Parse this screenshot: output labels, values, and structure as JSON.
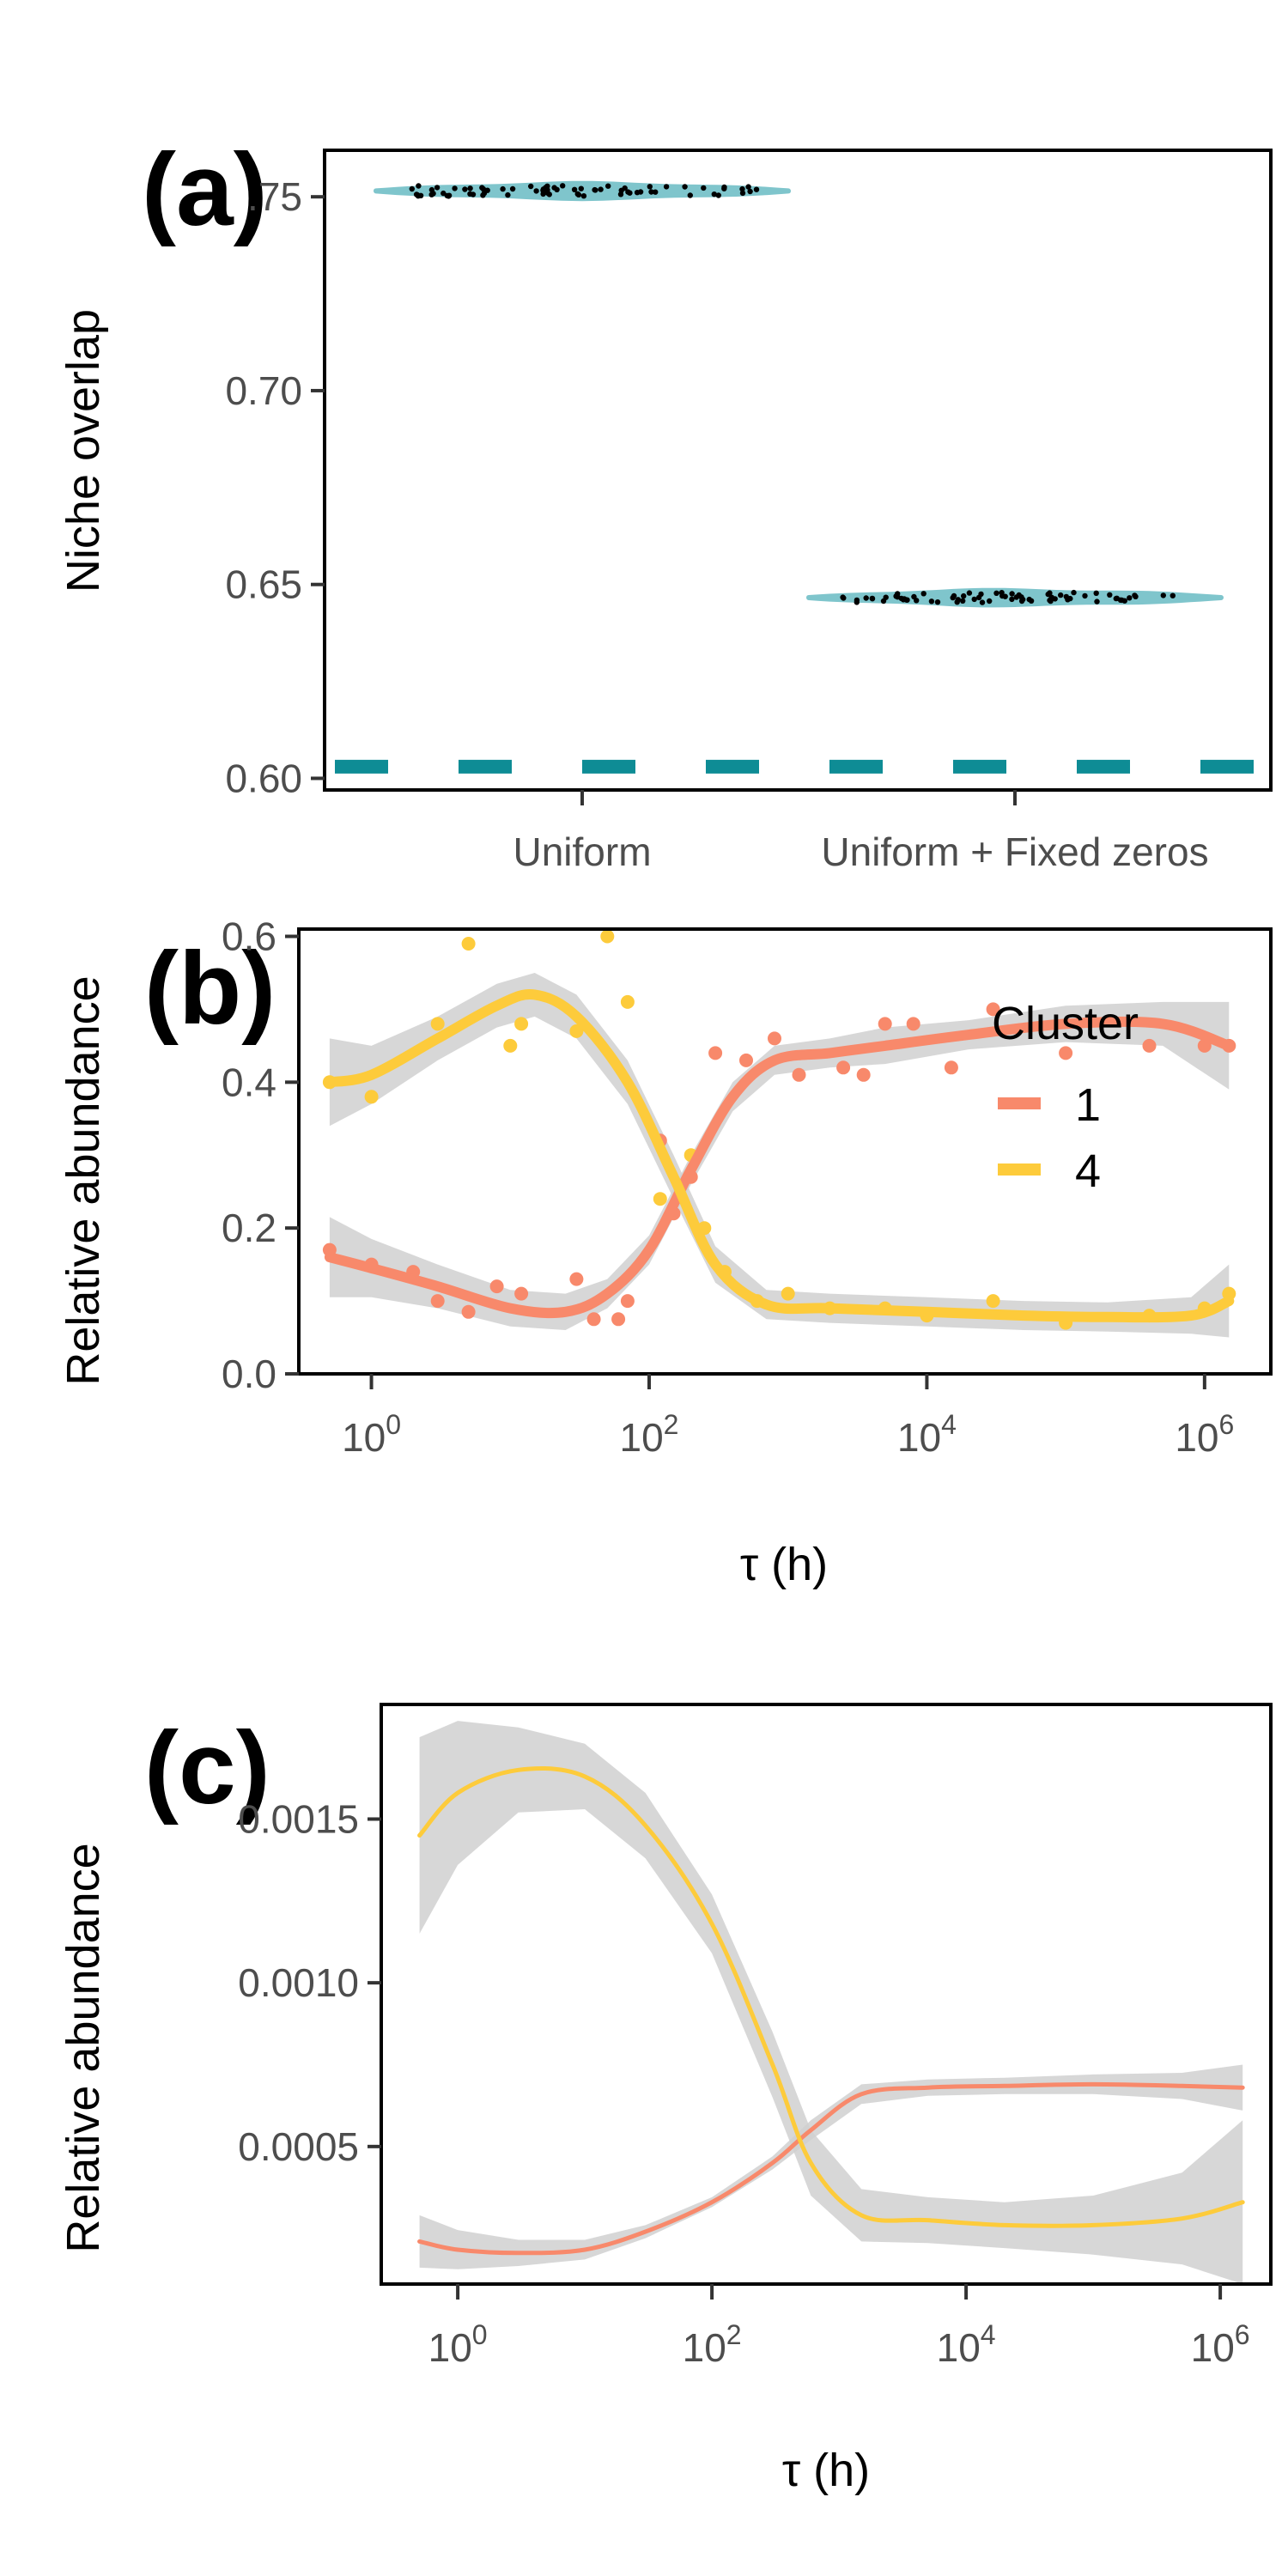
{
  "colors": {
    "cluster_1": "#F8896B",
    "cluster_4": "#FDCB3B",
    "violin": "#7FC5CC",
    "reference_line": "#0E8C95",
    "ribbon": "#D0D0D0",
    "points_a": "#000000"
  },
  "chart_data": [
    {
      "panel": "(a)",
      "type": "scatter",
      "subtype": "violin-jitter",
      "categories": [
        "Uniform",
        "Uniform + Fixed zeros"
      ],
      "ylabel": "Niche overlap",
      "xlabel": "",
      "ylim": [
        0.597,
        0.762
      ],
      "y_ticks": [
        0.6,
        0.65,
        0.7,
        0.75
      ],
      "y_tick_labels": [
        "0.60",
        "0.65",
        "0.70",
        ".75"
      ],
      "grid": false,
      "reference_line": {
        "y": 0.603,
        "style": "dashed"
      },
      "series": [
        {
          "category": "Uniform",
          "median": 0.7515,
          "min": 0.7505,
          "max": 0.7526
        },
        {
          "category": "Uniform + Fixed zeros",
          "median": 0.6466,
          "min": 0.6457,
          "max": 0.6477
        }
      ]
    },
    {
      "panel": "(b)",
      "type": "scatter",
      "subtype": "points-with-smooth",
      "xlabel": "τ (h)",
      "ylabel": "Relative abundance",
      "x_scale": "log10",
      "xlim": [
        0.3,
        3000000
      ],
      "ylim": [
        0,
        0.61
      ],
      "x_ticks": [
        1,
        100,
        10000,
        1000000
      ],
      "x_tick_labels": [
        "10",
        "10",
        "10",
        "10"
      ],
      "x_tick_exponents": [
        "0",
        "2",
        "4",
        "6"
      ],
      "y_ticks": [
        0,
        0.2,
        0.4,
        0.6
      ],
      "y_tick_labels": [
        "0.0",
        "0.2",
        "0.4",
        "0.6"
      ],
      "grid": false,
      "legend": {
        "title": "Cluster",
        "position": "top-right",
        "entries": [
          "1",
          "4"
        ]
      },
      "series": [
        {
          "name": "1",
          "points": [
            [
              0.5,
              0.17
            ],
            [
              1,
              0.15
            ],
            [
              2,
              0.14
            ],
            [
              3,
              0.1
            ],
            [
              5,
              0.085
            ],
            [
              8,
              0.12
            ],
            [
              12,
              0.11
            ],
            [
              30,
              0.13
            ],
            [
              40,
              0.075
            ],
            [
              60,
              0.075
            ],
            [
              70,
              0.1
            ],
            [
              120,
              0.32
            ],
            [
              150,
              0.22
            ],
            [
              200,
              0.27
            ],
            [
              300,
              0.44
            ],
            [
              500,
              0.43
            ],
            [
              800,
              0.46
            ],
            [
              1200,
              0.41
            ],
            [
              2500,
              0.42
            ],
            [
              3500,
              0.41
            ],
            [
              5000,
              0.48
            ],
            [
              8000,
              0.48
            ],
            [
              15000,
              0.42
            ],
            [
              30000,
              0.5
            ],
            [
              100000,
              0.44
            ],
            [
              400000,
              0.45
            ],
            [
              1000000,
              0.45
            ],
            [
              1500000,
              0.45
            ]
          ],
          "smooth": [
            [
              0.5,
              0.16
            ],
            [
              1,
              0.145
            ],
            [
              3,
              0.12
            ],
            [
              10,
              0.09
            ],
            [
              25,
              0.085
            ],
            [
              50,
              0.11
            ],
            [
              100,
              0.17
            ],
            [
              200,
              0.28
            ],
            [
              400,
              0.38
            ],
            [
              800,
              0.43
            ],
            [
              2000,
              0.44
            ],
            [
              5000,
              0.45
            ],
            [
              20000,
              0.465
            ],
            [
              100000,
              0.48
            ],
            [
              500000,
              0.48
            ],
            [
              1500000,
              0.45
            ]
          ],
          "ribbon_halfwidth": [
            0.055,
            0.04,
            0.03,
            0.025,
            0.025,
            0.02,
            0.02,
            0.02,
            0.02,
            0.02,
            0.02,
            0.025,
            0.02,
            0.025,
            0.03,
            0.06
          ]
        },
        {
          "name": "4",
          "points": [
            [
              0.5,
              0.4
            ],
            [
              1,
              0.38
            ],
            [
              3,
              0.48
            ],
            [
              5,
              0.59
            ],
            [
              10,
              0.45
            ],
            [
              12,
              0.48
            ],
            [
              30,
              0.47
            ],
            [
              50,
              0.6
            ],
            [
              70,
              0.51
            ],
            [
              120,
              0.24
            ],
            [
              200,
              0.3
            ],
            [
              250,
              0.2
            ],
            [
              350,
              0.14
            ],
            [
              600,
              0.1
            ],
            [
              1000,
              0.11
            ],
            [
              2000,
              0.09
            ],
            [
              5000,
              0.09
            ],
            [
              10000,
              0.08
            ],
            [
              30000,
              0.1
            ],
            [
              100000,
              0.07
            ],
            [
              400000,
              0.08
            ],
            [
              1000000,
              0.09
            ],
            [
              1500000,
              0.11
            ]
          ],
          "smooth": [
            [
              0.5,
              0.4
            ],
            [
              1,
              0.41
            ],
            [
              3,
              0.46
            ],
            [
              8,
              0.505
            ],
            [
              15,
              0.52
            ],
            [
              30,
              0.49
            ],
            [
              70,
              0.4
            ],
            [
              150,
              0.27
            ],
            [
              300,
              0.15
            ],
            [
              700,
              0.095
            ],
            [
              2000,
              0.09
            ],
            [
              10000,
              0.085
            ],
            [
              50000,
              0.08
            ],
            [
              200000,
              0.078
            ],
            [
              800000,
              0.08
            ],
            [
              1500000,
              0.1
            ]
          ],
          "ribbon_halfwidth": [
            0.06,
            0.04,
            0.03,
            0.03,
            0.03,
            0.03,
            0.03,
            0.03,
            0.025,
            0.02,
            0.02,
            0.02,
            0.02,
            0.02,
            0.025,
            0.05
          ]
        }
      ]
    },
    {
      "panel": "(c)",
      "type": "line",
      "xlabel": "τ (h)",
      "ylabel": "Relative abundance",
      "x_scale": "log10",
      "xlim": [
        0.25,
        2500000
      ],
      "ylim": [
        8e-05,
        0.00185
      ],
      "x_ticks": [
        1,
        100,
        10000,
        1000000
      ],
      "x_tick_labels": [
        "10",
        "10",
        "10",
        "10"
      ],
      "x_tick_exponents": [
        "0",
        "2",
        "4",
        "6"
      ],
      "y_ticks": [
        0.0005,
        0.001,
        0.0015
      ],
      "y_tick_labels": [
        "0.0005",
        "0.0010",
        "0.0015"
      ],
      "grid": false,
      "series": [
        {
          "name": "1",
          "smooth": [
            [
              0.5,
              0.00021
            ],
            [
              1,
              0.000185
            ],
            [
              3,
              0.000175
            ],
            [
              10,
              0.000185
            ],
            [
              30,
              0.00024
            ],
            [
              100,
              0.00033
            ],
            [
              300,
              0.00045
            ],
            [
              600,
              0.00055
            ],
            [
              1500,
              0.00066
            ],
            [
              5000,
              0.00068
            ],
            [
              20000,
              0.000685
            ],
            [
              100000,
              0.00069
            ],
            [
              500000,
              0.000685
            ],
            [
              1500000,
              0.00068
            ]
          ],
          "ribbon_halfwidth": [
            8e-05,
            6e-05,
            4e-05,
            3e-05,
            2e-05,
            1.5e-05,
            2e-05,
            3e-05,
            3e-05,
            2.5e-05,
            2.5e-05,
            3e-05,
            4e-05,
            7e-05
          ]
        },
        {
          "name": "4",
          "smooth": [
            [
              0.5,
              0.00145
            ],
            [
              1,
              0.00158
            ],
            [
              3,
              0.00165
            ],
            [
              10,
              0.00163
            ],
            [
              30,
              0.00148
            ],
            [
              100,
              0.00118
            ],
            [
              300,
              0.00075
            ],
            [
              600,
              0.00045
            ],
            [
              1500,
              0.00029
            ],
            [
              5000,
              0.000275
            ],
            [
              20000,
              0.00026
            ],
            [
              100000,
              0.00026
            ],
            [
              500000,
              0.00028
            ],
            [
              1500000,
              0.00033
            ]
          ],
          "ribbon_halfwidth": [
            0.0003,
            0.00022,
            0.00013,
            0.0001,
            0.0001,
            9e-05,
            0.0001,
            0.0001,
            8e-05,
            7e-05,
            7e-05,
            9e-05,
            0.00014,
            0.00025
          ]
        }
      ]
    }
  ]
}
